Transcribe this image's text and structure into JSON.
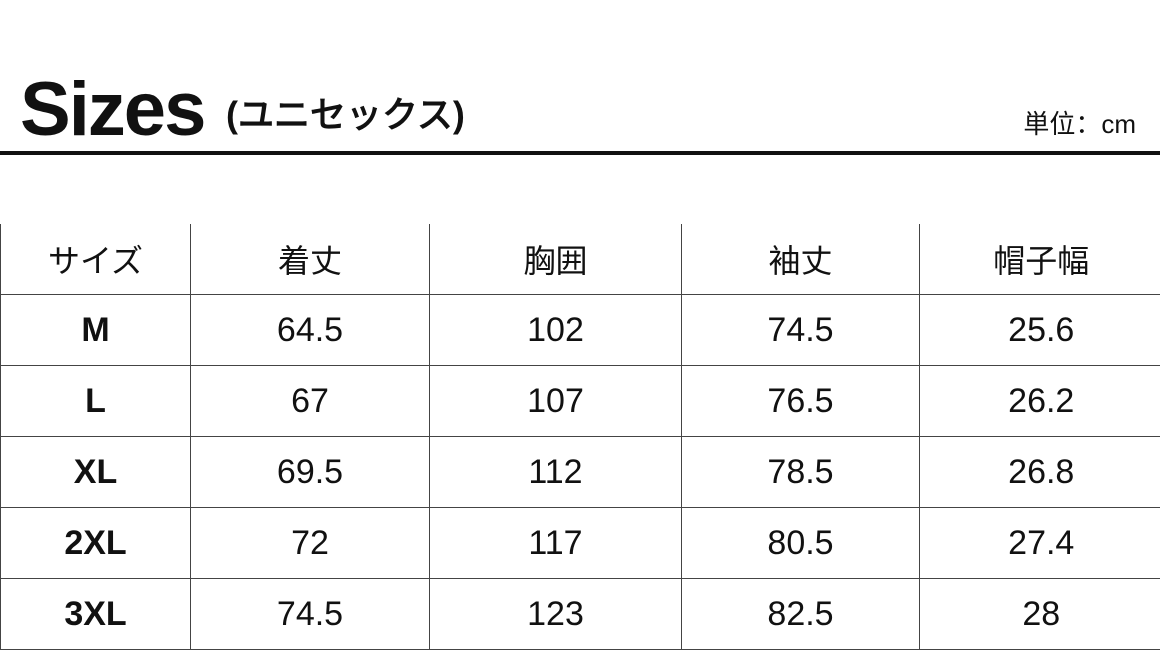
{
  "header": {
    "title": "Sizes",
    "subtitle": "(ユニセックス)",
    "unit": "単位：cm"
  },
  "table": {
    "columns": [
      "サイズ",
      "着丈",
      "胸囲",
      "袖丈",
      "帽子幅"
    ],
    "rows": [
      [
        "M",
        "64.5",
        "102",
        "74.5",
        "25.6"
      ],
      [
        "L",
        "67",
        "107",
        "76.5",
        "26.2"
      ],
      [
        "XL",
        "69.5",
        "112",
        "78.5",
        "26.8"
      ],
      [
        "2XL",
        "72",
        "117",
        "80.5",
        "27.4"
      ],
      [
        "3XL",
        "74.5",
        "123",
        "82.5",
        "28"
      ]
    ]
  }
}
